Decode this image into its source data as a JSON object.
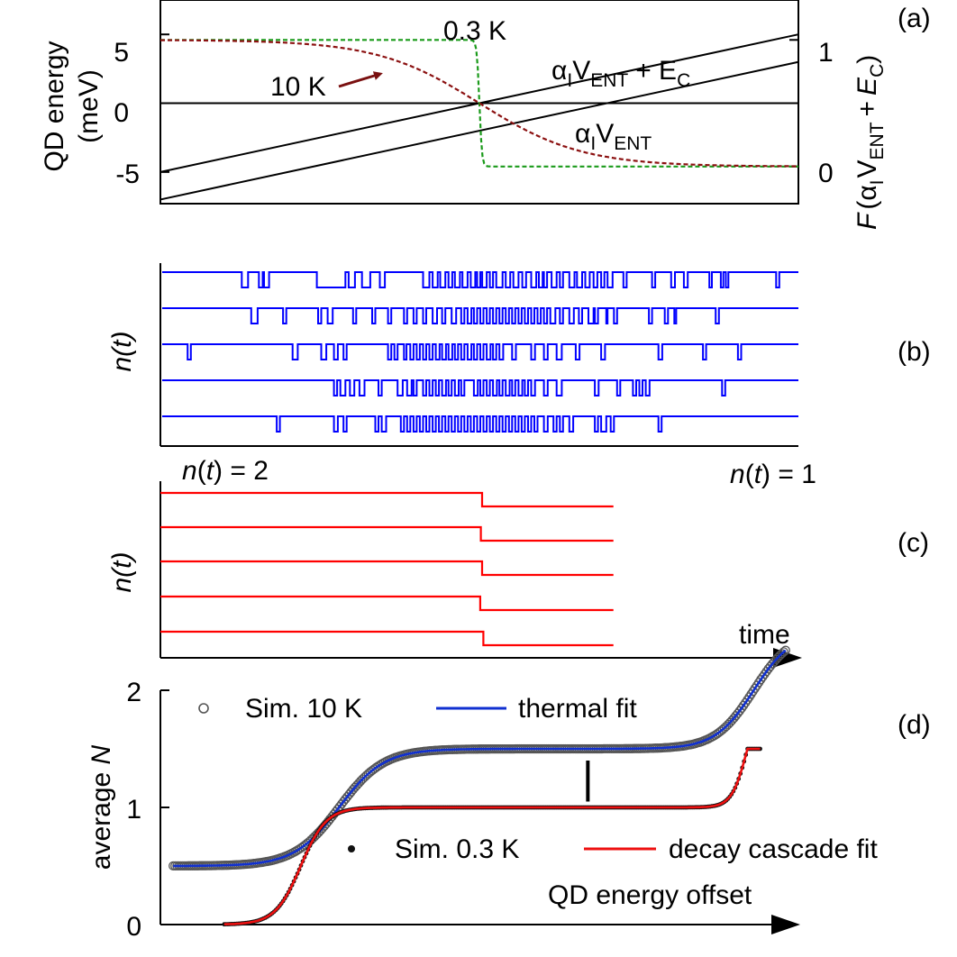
{
  "colors": {
    "axis": "#000000",
    "cold": "#1a9a1a",
    "hot": "#8b1010",
    "trace_b": "#0000ff",
    "trace_c": "#ff0000",
    "sim_hot": "#555555",
    "fit_hot": "#1030d0",
    "sim_cold": "#111111",
    "fit_cold": "#ee1010"
  },
  "panels": {
    "a": {
      "label": "(a)"
    },
    "b": {
      "label": "(b)"
    },
    "c": {
      "label": "(c)"
    },
    "d": {
      "label": "(d)"
    }
  },
  "chart_data": [
    {
      "id": "a",
      "type": "line",
      "ylabel_line1": "QD energy",
      "ylabel_line2": "(meV)",
      "yticks": [
        "5",
        "0",
        "-5"
      ],
      "ytick_values": [
        5,
        0,
        -5
      ],
      "ylim": [
        -7.3,
        7.5
      ],
      "xlim": [
        -1,
        1
      ],
      "right_ylabel": {
        "prefix": "F",
        "open": "(α",
        "s1": "I",
        "v": "V",
        "s2": "ENT",
        "plus": "+",
        "e": "E",
        "s3": "C",
        "close": ")"
      },
      "right_yticks": [
        "1",
        "0"
      ],
      "right_tick_values": [
        1,
        0
      ],
      "right_ylim": [
        0,
        1
      ],
      "line_labels": {
        "upper": {
          "a": "α",
          "s1": "I",
          "v": "V",
          "s2": "ENT",
          "plus": "+ E",
          "s3": "C"
        },
        "lower": {
          "a": "α",
          "s1": "I",
          "v": "V",
          "s2": "ENT"
        }
      },
      "temp_labels": {
        "cold": "0.3 K",
        "hot": "10 K"
      },
      "series": [
        {
          "name": "αI VENT",
          "kind": "energy",
          "x": [
            -1,
            1
          ],
          "values": [
            -7.0,
            3.0
          ]
        },
        {
          "name": "αI VENT + EC",
          "kind": "energy",
          "x": [
            -1,
            1
          ],
          "values": [
            -5.0,
            5.0
          ]
        },
        {
          "name": "zero",
          "kind": "energy",
          "x": [
            -1,
            1
          ],
          "values": [
            0,
            0
          ]
        },
        {
          "name": "Fermi 0.3 K",
          "kind": "fermi",
          "x0": 0.0,
          "kT": 0.004,
          "high": 1.0,
          "low": 0.0
        },
        {
          "name": "Fermi 10 K",
          "kind": "fermi",
          "x0": 0.0,
          "kT": 0.16,
          "high": 1.0,
          "low": 0.0
        }
      ]
    },
    {
      "id": "b",
      "type": "line",
      "ylabel": "n(t)",
      "traces": [
        {
          "toggles": [
            0.125,
            0.135,
            0.152,
            0.158,
            0.16,
            0.168,
            0.243,
            0.288,
            0.293,
            0.303,
            0.314,
            0.327,
            0.342,
            0.35,
            0.41,
            0.42,
            0.425,
            0.433,
            0.437,
            0.445,
            0.45,
            0.456,
            0.46,
            0.468,
            0.472,
            0.48,
            0.485,
            0.492,
            0.495,
            0.5,
            0.503,
            0.51,
            0.515,
            0.52,
            0.525,
            0.535,
            0.54,
            0.547,
            0.552,
            0.56,
            0.566,
            0.572,
            0.58,
            0.588,
            0.592,
            0.598,
            0.6,
            0.605,
            0.612,
            0.62,
            0.625,
            0.63,
            0.64,
            0.648,
            0.652,
            0.66,
            0.665,
            0.672,
            0.678,
            0.684,
            0.69,
            0.695,
            0.7,
            0.708,
            0.725,
            0.73,
            0.77,
            0.775,
            0.8,
            0.806,
            0.82,
            0.826,
            0.86,
            0.864,
            0.878,
            0.882,
            0.886,
            0.89,
            0.965,
            0.97
          ]
        },
        {
          "toggles": [
            0.14,
            0.15,
            0.19,
            0.195,
            0.245,
            0.25,
            0.26,
            0.268,
            0.3,
            0.305,
            0.33,
            0.335,
            0.355,
            0.36,
            0.38,
            0.385,
            0.395,
            0.4,
            0.41,
            0.415,
            0.425,
            0.432,
            0.44,
            0.445,
            0.455,
            0.462,
            0.47,
            0.475,
            0.48,
            0.486,
            0.49,
            0.495,
            0.5,
            0.505,
            0.51,
            0.515,
            0.52,
            0.525,
            0.53,
            0.535,
            0.54,
            0.545,
            0.55,
            0.555,
            0.56,
            0.565,
            0.57,
            0.575,
            0.58,
            0.585,
            0.59,
            0.595,
            0.6,
            0.605,
            0.61,
            0.618,
            0.625,
            0.63,
            0.64,
            0.647,
            0.655,
            0.66,
            0.67,
            0.678,
            0.68,
            0.685,
            0.698,
            0.7,
            0.71,
            0.715,
            0.765,
            0.77,
            0.79,
            0.795,
            0.805,
            0.808,
            0.87,
            0.875
          ]
        },
        {
          "toggles": [
            0.04,
            0.045,
            0.205,
            0.213,
            0.25,
            0.258,
            0.27,
            0.276,
            0.285,
            0.29,
            0.355,
            0.36,
            0.365,
            0.37,
            0.38,
            0.384,
            0.39,
            0.395,
            0.4,
            0.405,
            0.41,
            0.415,
            0.42,
            0.425,
            0.43,
            0.436,
            0.44,
            0.446,
            0.45,
            0.456,
            0.46,
            0.465,
            0.47,
            0.475,
            0.48,
            0.486,
            0.49,
            0.495,
            0.5,
            0.505,
            0.51,
            0.516,
            0.52,
            0.525,
            0.53,
            0.536,
            0.55,
            0.556,
            0.58,
            0.586,
            0.6,
            0.606,
            0.62,
            0.628,
            0.65,
            0.656,
            0.69,
            0.696,
            0.78,
            0.786,
            0.85,
            0.855,
            0.905,
            0.91
          ]
        },
        {
          "toggles": [
            0.27,
            0.275,
            0.28,
            0.288,
            0.295,
            0.302,
            0.31,
            0.318,
            0.34,
            0.345,
            0.37,
            0.378,
            0.385,
            0.392,
            0.395,
            0.4,
            0.41,
            0.415,
            0.42,
            0.425,
            0.43,
            0.435,
            0.44,
            0.446,
            0.45,
            0.455,
            0.46,
            0.466,
            0.47,
            0.475,
            0.49,
            0.496,
            0.5,
            0.505,
            0.51,
            0.515,
            0.52,
            0.526,
            0.53,
            0.535,
            0.54,
            0.546,
            0.55,
            0.555,
            0.56,
            0.566,
            0.57,
            0.575,
            0.58,
            0.586,
            0.6,
            0.606,
            0.62,
            0.628,
            0.68,
            0.686,
            0.715,
            0.72,
            0.74,
            0.745,
            0.75,
            0.755,
            0.76,
            0.766,
            0.88,
            0.885
          ]
        },
        {
          "toggles": [
            0.18,
            0.185,
            0.27,
            0.276,
            0.285,
            0.29,
            0.335,
            0.34,
            0.345,
            0.352,
            0.375,
            0.38,
            0.385,
            0.39,
            0.395,
            0.4,
            0.405,
            0.41,
            0.415,
            0.42,
            0.425,
            0.43,
            0.435,
            0.44,
            0.445,
            0.45,
            0.455,
            0.46,
            0.465,
            0.47,
            0.475,
            0.48,
            0.485,
            0.49,
            0.495,
            0.5,
            0.505,
            0.51,
            0.515,
            0.52,
            0.525,
            0.53,
            0.535,
            0.54,
            0.545,
            0.55,
            0.555,
            0.56,
            0.565,
            0.57,
            0.575,
            0.58,
            0.585,
            0.59,
            0.6,
            0.606,
            0.615,
            0.62,
            0.625,
            0.63,
            0.64,
            0.646,
            0.68,
            0.685,
            0.69,
            0.698,
            0.705,
            0.71,
            0.78,
            0.785
          ]
        }
      ]
    },
    {
      "id": "c",
      "type": "line",
      "ylabel": "n(t)",
      "xlabel": "time",
      "state_labels": {
        "left": {
          "a": "n",
          "b": "(",
          "c": "t",
          "d": ") = 2"
        },
        "right": {
          "a": "n",
          "b": "(",
          "c": "t",
          "d": ") = 1"
        }
      },
      "step_x": [
        0.5,
        0.498,
        0.5,
        0.497,
        0.502
      ],
      "x_end": 0.71,
      "traces": 5
    },
    {
      "id": "d",
      "type": "scatter",
      "ylabel": {
        "a": "average ",
        "b": "N"
      },
      "xlabel": "QD energy offset",
      "yticks": [
        "0",
        "1",
        "2"
      ],
      "ytick_values": [
        0,
        1,
        2
      ],
      "ylim": [
        0,
        2
      ],
      "xlim": [
        0,
        1
      ],
      "legend": {
        "sim_hot": "Sim. 10 K",
        "fit_hot": "thermal fit",
        "sim_cold": "Sim. 0.3 K",
        "fit_cold": "decay cascade fit"
      },
      "series": [
        {
          "name": "Sim. 10 K / thermal fit",
          "base": 0.5,
          "steps": [
            {
              "x0": 0.28,
              "w": 0.035
            },
            {
              "x0": 0.93,
              "w": 0.03
            }
          ],
          "x_range": [
            0.02,
            0.98
          ]
        },
        {
          "name": "Sim. 0.3 K / decay cascade fit",
          "base": 0.0,
          "steps": [
            {
              "x0": 0.22,
              "w": 0.02
            },
            {
              "x0": 0.92,
              "w": 0.012
            }
          ],
          "x_range": [
            0.1,
            0.94
          ],
          "max": 1.5
        }
      ],
      "marker": {
        "x": 0.67,
        "from": 1.05,
        "to": 1.4
      }
    }
  ]
}
